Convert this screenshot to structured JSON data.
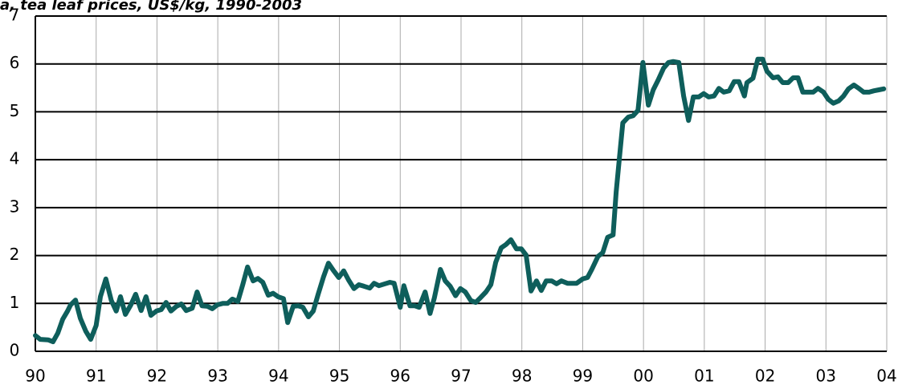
{
  "chart_data": {
    "type": "line",
    "title": "a, tea leaf prices, US$/kg, 1990-2003",
    "xlim": [
      1990,
      2004
    ],
    "ylim": [
      0,
      7
    ],
    "xticks": [
      {
        "value": 1990,
        "label": "90"
      },
      {
        "value": 1991,
        "label": "91"
      },
      {
        "value": 1992,
        "label": "92"
      },
      {
        "value": 1993,
        "label": "93"
      },
      {
        "value": 1994,
        "label": "94"
      },
      {
        "value": 1995,
        "label": "95"
      },
      {
        "value": 1996,
        "label": "96"
      },
      {
        "value": 1997,
        "label": "97"
      },
      {
        "value": 1998,
        "label": "98"
      },
      {
        "value": 1999,
        "label": "99"
      },
      {
        "value": 2000,
        "label": "00"
      },
      {
        "value": 2001,
        "label": "01"
      },
      {
        "value": 2002,
        "label": "02"
      },
      {
        "value": 2003,
        "label": "03"
      },
      {
        "value": 2004,
        "label": "04"
      }
    ],
    "yticks": [
      0,
      1,
      2,
      3,
      4,
      5,
      6,
      7
    ],
    "grid": true,
    "series": [
      {
        "color": "#0e5e5b",
        "x": [
          1990,
          1990.08,
          1990.21,
          1990.29,
          1990.37,
          1990.45,
          1990.53,
          1990.58,
          1990.66,
          1990.74,
          1990.83,
          1990.91,
          1991,
          1991.07,
          1991.16,
          1991.25,
          1991.33,
          1991.4,
          1991.48,
          1991.57,
          1991.65,
          1991.74,
          1991.82,
          1991.9,
          1991.99,
          1992.07,
          1992.15,
          1992.23,
          1992.32,
          1992.4,
          1992.48,
          1992.58,
          1992.66,
          1992.74,
          1992.83,
          1992.91,
          1992.99,
          1993.08,
          1993.16,
          1993.24,
          1993.33,
          1993.41,
          1993.49,
          1993.58,
          1993.66,
          1993.74,
          1993.83,
          1993.91,
          1993.99,
          1994.08,
          1994.15,
          1994.24,
          1994.32,
          1994.4,
          1994.49,
          1994.57,
          1994.65,
          1994.74,
          1994.82,
          1994.9,
          1994.99,
          1995.07,
          1995.15,
          1995.24,
          1995.32,
          1995.4,
          1995.5,
          1995.57,
          1995.65,
          1995.75,
          1995.83,
          1995.9,
          1996,
          1996.06,
          1996.16,
          1996.24,
          1996.31,
          1996.41,
          1996.49,
          1996.56,
          1996.66,
          1996.74,
          1996.82,
          1996.91,
          1996.99,
          1997.07,
          1997.16,
          1997.24,
          1997.32,
          1997.41,
          1997.49,
          1997.57,
          1997.66,
          1997.74,
          1997.82,
          1997.91,
          1997.99,
          1998.07,
          1998.15,
          1998.24,
          1998.32,
          1998.4,
          1998.49,
          1998.57,
          1998.65,
          1998.75,
          1998.82,
          1998.9,
          1999,
          1999.08,
          1999.15,
          1999.25,
          1999.33,
          1999.41,
          1999.5,
          1999.55,
          1999.6,
          1999.66,
          1999.75,
          1999.83,
          1999.91,
          1999.99,
          2000.08,
          2000.16,
          2000.24,
          2000.33,
          2000.41,
          2000.49,
          2000.58,
          2000.66,
          2000.74,
          2000.82,
          2000.91,
          2000.99,
          2001.07,
          2001.16,
          2001.24,
          2001.32,
          2001.41,
          2001.49,
          2001.57,
          2001.66,
          2001.7,
          2001.8,
          2001.88,
          2001.96,
          2002.03,
          2002.13,
          2002.21,
          2002.29,
          2002.38,
          2002.46,
          2002.54,
          2002.62,
          2002.71,
          2002.79,
          2002.87,
          2002.96,
          2003.04,
          2003.12,
          2003.21,
          2003.29,
          2003.37,
          2003.46,
          2003.54,
          2003.62,
          2003.71,
          2003.79,
          2003.87,
          2003.95
        ],
        "values": [
          0.33,
          0.25,
          0.24,
          0.2,
          0.38,
          0.67,
          0.84,
          0.97,
          1.07,
          0.69,
          0.42,
          0.25,
          0.54,
          1.14,
          1.51,
          1.06,
          0.84,
          1.14,
          0.77,
          0.97,
          1.19,
          0.85,
          1.14,
          0.75,
          0.84,
          0.87,
          1.02,
          0.84,
          0.94,
          0.99,
          0.85,
          0.9,
          1.24,
          0.95,
          0.94,
          0.89,
          0.97,
          1.0,
          1.0,
          1.09,
          1.04,
          1.39,
          1.76,
          1.47,
          1.52,
          1.44,
          1.17,
          1.21,
          1.14,
          1.1,
          0.6,
          0.94,
          0.95,
          0.92,
          0.72,
          0.84,
          1.19,
          1.56,
          1.84,
          1.69,
          1.54,
          1.68,
          1.49,
          1.31,
          1.39,
          1.36,
          1.32,
          1.42,
          1.37,
          1.41,
          1.44,
          1.42,
          0.92,
          1.37,
          0.95,
          0.95,
          0.92,
          1.24,
          0.79,
          1.11,
          1.71,
          1.47,
          1.36,
          1.16,
          1.31,
          1.24,
          1.06,
          1.02,
          1.12,
          1.24,
          1.39,
          1.86,
          2.16,
          2.23,
          2.33,
          2.14,
          2.14,
          2.01,
          1.26,
          1.47,
          1.27,
          1.47,
          1.47,
          1.41,
          1.47,
          1.42,
          1.42,
          1.42,
          1.51,
          1.54,
          1.71,
          1.98,
          2.06,
          2.38,
          2.43,
          3.32,
          3.99,
          4.77,
          4.89,
          4.92,
          5.03,
          6.03,
          5.14,
          5.46,
          5.66,
          5.91,
          6.03,
          6.05,
          6.03,
          5.33,
          4.82,
          5.31,
          5.31,
          5.38,
          5.31,
          5.33,
          5.49,
          5.41,
          5.44,
          5.63,
          5.63,
          5.33,
          5.61,
          5.7,
          6.1,
          6.1,
          5.85,
          5.71,
          5.73,
          5.61,
          5.61,
          5.71,
          5.71,
          5.41,
          5.41,
          5.41,
          5.49,
          5.41,
          5.26,
          5.18,
          5.23,
          5.33,
          5.48,
          5.56,
          5.49,
          5.41,
          5.41,
          5.44,
          5.46,
          5.48
        ]
      }
    ]
  }
}
